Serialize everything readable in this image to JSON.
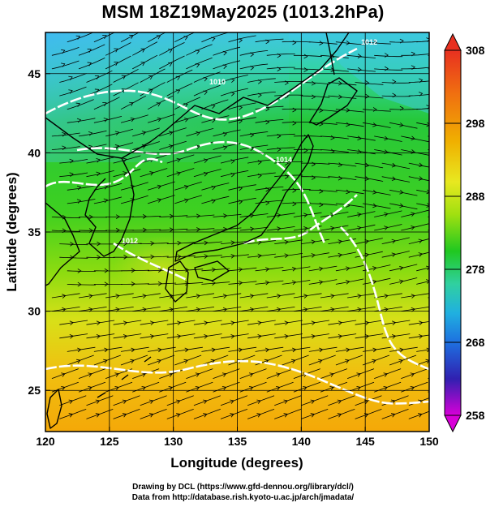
{
  "title": "MSM 18Z19May2025 (1013.2hPa)",
  "credits": {
    "line1": "Drawing by DCL (https://www.gfd-dennou.org/library/dcl/)",
    "line2": "Data from http://database.rish.kyoto-u.ac.jp/arch/jmadata/"
  },
  "axes": {
    "xlabel": "Longitude (degrees)",
    "ylabel": "Latitude  (degrees)",
    "xlim": [
      120,
      150
    ],
    "ylim": [
      22.4,
      47.6
    ],
    "xticks": [
      "120",
      "125",
      "130",
      "135",
      "140",
      "145",
      "150"
    ],
    "yticks": [
      "25",
      "30",
      "35",
      "40",
      "45"
    ],
    "grid": true
  },
  "colorbar": {
    "min": 258,
    "max": 308,
    "ticks": [
      "308",
      "298",
      "288",
      "278",
      "268",
      "258"
    ],
    "colors": [
      "#d400d4",
      "#3030c0",
      "#0a5ad8",
      "#1e9ee8",
      "#2ed0c8",
      "#30d070",
      "#1ec81e",
      "#a0e010",
      "#e8e820",
      "#f0b000",
      "#f07000",
      "#e02010"
    ]
  },
  "contour_labels": [
    "1010",
    "1014",
    "1012",
    "1012"
  ],
  "colors": {
    "land_outline": "#000000",
    "isobar": "#ffffff",
    "grid": "#000000"
  }
}
